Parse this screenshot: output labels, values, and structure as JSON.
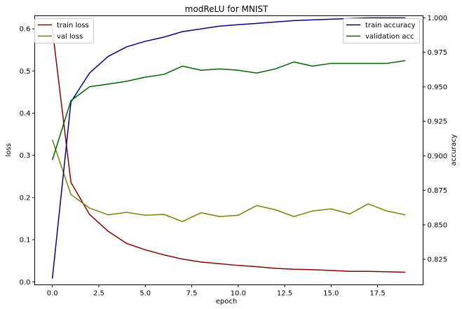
{
  "chart_data": {
    "type": "line",
    "title": "modReLU for MNIST",
    "xlabel": "epoch",
    "ylabel_left": "loss",
    "ylabel_right": "accuracy",
    "xlim": [
      -0.95,
      19.95
    ],
    "ylim_left": [
      -0.007,
      0.631
    ],
    "ylim_right": [
      0.8065,
      1.0015
    ],
    "x_ticks": [
      0,
      2.5,
      5,
      7.5,
      10,
      12.5,
      15,
      17.5
    ],
    "x_tick_labels": [
      "0.0",
      "2.5",
      "5.0",
      "7.5",
      "10.0",
      "12.5",
      "15.0",
      "17.5"
    ],
    "y_left_ticks": [
      0,
      0.1,
      0.2,
      0.3,
      0.4,
      0.5,
      0.6
    ],
    "y_left_tick_labels": [
      "0.0",
      "0.1",
      "0.2",
      "0.3",
      "0.4",
      "0.5",
      "0.6"
    ],
    "y_right_ticks": [
      0.825,
      0.85,
      0.875,
      0.9,
      0.925,
      0.95,
      0.975,
      1.0
    ],
    "y_right_tick_labels": [
      "0.825",
      "0.850",
      "0.875",
      "0.900",
      "0.925",
      "0.950",
      "0.975",
      "1.000"
    ],
    "grid": false,
    "x": [
      0,
      1,
      2,
      3,
      4,
      5,
      6,
      7,
      8,
      9,
      10,
      11,
      12,
      13,
      14,
      15,
      16,
      17,
      18,
      19
    ],
    "series_left": [
      {
        "name": "train loss",
        "color": "#8b0000",
        "values": [
          0.6,
          0.236,
          0.16,
          0.12,
          0.091,
          0.076,
          0.064,
          0.054,
          0.047,
          0.043,
          0.039,
          0.036,
          0.032,
          0.03,
          0.029,
          0.027,
          0.025,
          0.025,
          0.024,
          0.023
        ]
      },
      {
        "name": "val loss",
        "color": "#808000",
        "values": [
          0.337,
          0.207,
          0.175,
          0.159,
          0.165,
          0.158,
          0.16,
          0.143,
          0.164,
          0.155,
          0.158,
          0.181,
          0.171,
          0.155,
          0.168,
          0.173,
          0.161,
          0.185,
          0.168,
          0.159
        ]
      }
    ],
    "series_right": [
      {
        "name": "train accuracy",
        "color": "#00008b",
        "values": [
          0.811,
          0.939,
          0.96,
          0.972,
          0.979,
          0.983,
          0.986,
          0.99,
          0.992,
          0.994,
          0.995,
          0.996,
          0.997,
          0.998,
          0.9985,
          0.999,
          0.9995,
          1.0,
          1.0,
          1.0
        ]
      },
      {
        "name": "validation acc",
        "color": "#006400",
        "values": [
          0.897,
          0.94,
          0.95,
          0.952,
          0.954,
          0.957,
          0.959,
          0.965,
          0.962,
          0.963,
          0.962,
          0.96,
          0.963,
          0.968,
          0.965,
          0.967,
          0.967,
          0.967,
          0.967,
          0.969
        ]
      }
    ],
    "legend_left_placement": "top-left",
    "legend_right_placement": "top-right"
  }
}
